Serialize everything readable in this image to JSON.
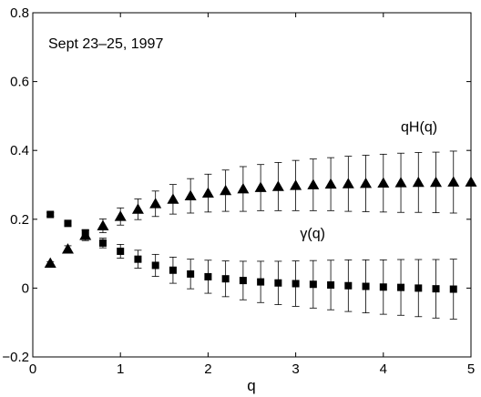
{
  "chart_data": {
    "type": "scatter",
    "title": "",
    "xlabel": "q",
    "ylabel": "",
    "xlim": [
      0,
      5
    ],
    "ylim": [
      -0.2,
      0.8
    ],
    "xticks": [
      0,
      1,
      2,
      3,
      4,
      5
    ],
    "xtick_labels": [
      "0",
      "1",
      "2",
      "3",
      "4",
      "5"
    ],
    "yticks": [
      -0.2,
      0,
      0.2,
      0.4,
      0.6,
      0.8
    ],
    "ytick_labels": [
      "−0.2",
      "0",
      "0.2",
      "0.4",
      "0.6",
      "0.8"
    ],
    "grid": false,
    "annotation": "Sept 23–25, 1997",
    "series": [
      {
        "name": "qH(q)",
        "marker": "triangle",
        "color": "#000000",
        "label_pos": [
          4.2,
          0.455
        ],
        "x": [
          0.2,
          0.4,
          0.6,
          0.8,
          1.0,
          1.2,
          1.4,
          1.6,
          1.8,
          2.0,
          2.2,
          2.4,
          2.6,
          2.8,
          3.0,
          3.2,
          3.4,
          3.6,
          3.8,
          4.0,
          4.2,
          4.4,
          4.6,
          4.8,
          5.0
        ],
        "y": [
          0.072,
          0.113,
          0.153,
          0.181,
          0.208,
          0.229,
          0.245,
          0.258,
          0.268,
          0.276,
          0.283,
          0.288,
          0.292,
          0.295,
          0.298,
          0.3,
          0.302,
          0.303,
          0.304,
          0.305,
          0.306,
          0.307,
          0.307,
          0.308,
          0.308
        ],
        "err": [
          0.005,
          0.01,
          0.015,
          0.02,
          0.025,
          0.03,
          0.037,
          0.043,
          0.05,
          0.055,
          0.06,
          0.065,
          0.067,
          0.07,
          0.073,
          0.075,
          0.077,
          0.08,
          0.082,
          0.084,
          0.086,
          0.087,
          0.088,
          0.09,
          0.0
        ]
      },
      {
        "name": "γ(q)",
        "marker": "square",
        "color": "#000000",
        "label_pos": [
          3.05,
          0.145
        ],
        "x": [
          0.2,
          0.4,
          0.6,
          0.8,
          1.0,
          1.2,
          1.4,
          1.6,
          1.8,
          2.0,
          2.2,
          2.4,
          2.6,
          2.8,
          3.0,
          3.2,
          3.4,
          3.6,
          3.8,
          4.0,
          4.2,
          4.4,
          4.6,
          4.8
        ],
        "y": [
          0.214,
          0.188,
          0.16,
          0.131,
          0.107,
          0.084,
          0.066,
          0.052,
          0.041,
          0.033,
          0.027,
          0.022,
          0.018,
          0.015,
          0.013,
          0.011,
          0.009,
          0.007,
          0.005,
          0.003,
          0.002,
          0.0,
          -0.002,
          -0.003
        ],
        "err": [
          0.005,
          0.006,
          0.01,
          0.014,
          0.02,
          0.026,
          0.032,
          0.038,
          0.043,
          0.048,
          0.052,
          0.056,
          0.06,
          0.063,
          0.066,
          0.069,
          0.072,
          0.075,
          0.077,
          0.079,
          0.081,
          0.083,
          0.085,
          0.087
        ]
      }
    ]
  }
}
